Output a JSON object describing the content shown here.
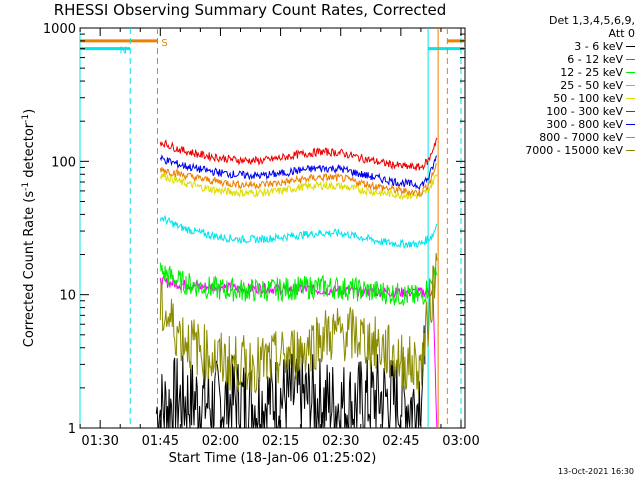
{
  "title": "RHESSI Observing Summary Count Rates, Corrected",
  "legend_header": [
    "Det 1,3,4,5,6,9,",
    "Att 0"
  ],
  "footer_date": "13-Oct-2021 16:30",
  "chart_data": {
    "type": "line",
    "title": "RHESSI Observing Summary Count Rates, Corrected",
    "xlabel": "Start Time (18-Jan-06 01:25:02)",
    "ylabel_parts": [
      "Corrected Count Rate (s",
      "-1",
      " detector",
      "-1",
      ")"
    ],
    "ylabel": "Corrected Count Rate (s-1 detector-1)",
    "y_scale": "log",
    "ylim": [
      1,
      1000
    ],
    "xlim_minutes": [
      84.97,
      181.0
    ],
    "x_ticks": [
      {
        "label": "01:30",
        "minutes": 90
      },
      {
        "label": "01:45",
        "minutes": 105
      },
      {
        "label": "02:00",
        "minutes": 120
      },
      {
        "label": "02:15",
        "minutes": 135
      },
      {
        "label": "02:30",
        "minutes": 150
      },
      {
        "label": "02:45",
        "minutes": 165
      },
      {
        "label": "03:00",
        "minutes": 180
      }
    ],
    "y_ticks": [
      {
        "label": "1000",
        "value": 1000
      },
      {
        "label": "100",
        "value": 100
      },
      {
        "label": "10",
        "value": 10
      },
      {
        "label": "1",
        "value": 1
      }
    ],
    "flag_bars": [
      {
        "label": "N",
        "color": "#00e5ee",
        "value": 700,
        "start_min": 84.97,
        "end_min": 97.5
      },
      {
        "label": "S",
        "color": "#ee8000",
        "value": 800,
        "start_min": 84.97,
        "end_min": 104.3
      },
      {
        "label": "",
        "color": "#00e5ee",
        "value": 700,
        "start_min": 171.8,
        "end_min": 181.0
      },
      {
        "label": "",
        "color": "#ee8000",
        "value": 800,
        "start_min": 176.6,
        "end_min": 181.0
      }
    ],
    "vlines": [
      {
        "color": "#00e5ee",
        "minutes": 84.97,
        "style": "solid"
      },
      {
        "color": "#00e5ee",
        "minutes": 97.5,
        "style": "dashed"
      },
      {
        "color": "#ee8000",
        "minutes": 104.3,
        "style": "dashed"
      },
      {
        "color": "#00e5ee",
        "minutes": 171.8,
        "style": "solid"
      },
      {
        "color": "#ee8000",
        "minutes": 174.3,
        "style": "solid"
      },
      {
        "color": "#ee8000",
        "minutes": 176.6,
        "style": "dashed"
      },
      {
        "color": "#00e5ee",
        "minutes": 180.0,
        "style": "dashed"
      }
    ],
    "series": [
      {
        "name": "3 - 6 keV",
        "color": "#000000",
        "x": [
          104,
          109,
          114,
          119,
          124,
          129,
          134,
          139,
          144,
          149,
          154,
          159,
          164,
          169,
          171
        ],
        "y": [
          1.3,
          1.6,
          1.6,
          1.5,
          1.6,
          1.5,
          1.7,
          1.7,
          1.6,
          1.5,
          1.5,
          1.7,
          1.6,
          1.5,
          3.0
        ]
      },
      {
        "name": "6 - 12 keV",
        "color": "#ff00ff",
        "x": [
          105,
          110,
          115,
          120,
          125,
          130,
          135,
          140,
          145,
          150,
          155,
          160,
          165,
          170,
          173,
          174
        ],
        "y": [
          12.5,
          12.0,
          11.5,
          11.5,
          11.0,
          11.2,
          11.0,
          11.0,
          10.8,
          10.8,
          10.5,
          10.5,
          10.4,
          10.4,
          10.5,
          1.0
        ]
      },
      {
        "name": "12 - 25 keV",
        "color": "#00ee00",
        "x": [
          105,
          110,
          115,
          120,
          125,
          130,
          135,
          140,
          145,
          150,
          155,
          160,
          165,
          170,
          174
        ],
        "y": [
          15,
          12.5,
          11.5,
          11.0,
          10.8,
          10.8,
          11.0,
          11.2,
          11.5,
          11.2,
          10.8,
          10.5,
          10.0,
          9.5,
          14
        ]
      },
      {
        "name": "25 - 50 keV",
        "color": "#00e5ee",
        "x": [
          105,
          110,
          115,
          120,
          125,
          130,
          135,
          140,
          145,
          150,
          155,
          160,
          165,
          170,
          173,
          174
        ],
        "y": [
          38,
          32,
          29,
          27,
          26,
          26,
          27,
          28,
          29,
          29,
          27,
          25,
          24,
          24,
          28,
          34
        ]
      },
      {
        "name": "50 - 100 keV",
        "color": "#dddd00",
        "x": [
          105,
          110,
          115,
          120,
          125,
          130,
          135,
          140,
          145,
          150,
          155,
          160,
          165,
          170,
          172,
          174
        ],
        "y": [
          80,
          70,
          64,
          60,
          58,
          58,
          60,
          64,
          66,
          65,
          61,
          58,
          56,
          55,
          62,
          80
        ]
      },
      {
        "name": "100 - 300 keV",
        "color": "#ee0000",
        "x": [
          105,
          110,
          115,
          120,
          125,
          130,
          135,
          140,
          145,
          150,
          155,
          160,
          165,
          170,
          172,
          174
        ],
        "y": [
          140,
          122,
          112,
          106,
          102,
          101,
          106,
          113,
          118,
          116,
          106,
          98,
          92,
          90,
          102,
          150
        ]
      },
      {
        "name": "300 - 800 keV",
        "color": "#0000ee",
        "x": [
          105,
          110,
          115,
          120,
          125,
          130,
          135,
          140,
          145,
          150,
          155,
          160,
          165,
          170,
          172,
          174
        ],
        "y": [
          105,
          94,
          87,
          82,
          79,
          78,
          81,
          86,
          89,
          88,
          80,
          74,
          69,
          66,
          76,
          110
        ]
      },
      {
        "name": "800 - 7000 keV",
        "color": "#ee8000",
        "x": [
          105,
          110,
          115,
          120,
          125,
          130,
          135,
          140,
          145,
          150,
          155,
          160,
          165,
          170,
          172,
          174
        ],
        "y": [
          88,
          80,
          74,
          70,
          67,
          67,
          69,
          73,
          76,
          75,
          69,
          64,
          60,
          58,
          68,
          95
        ]
      },
      {
        "name": "7000 - 15000 keV",
        "color": "#8b8b00",
        "x": [
          105,
          110,
          115,
          120,
          125,
          130,
          135,
          140,
          145,
          150,
          155,
          160,
          165,
          170,
          174
        ],
        "y": [
          8.0,
          5.0,
          3.8,
          3.2,
          3.0,
          3.0,
          3.3,
          3.8,
          4.8,
          5.2,
          4.8,
          4.0,
          3.2,
          2.8,
          18
        ]
      }
    ]
  }
}
